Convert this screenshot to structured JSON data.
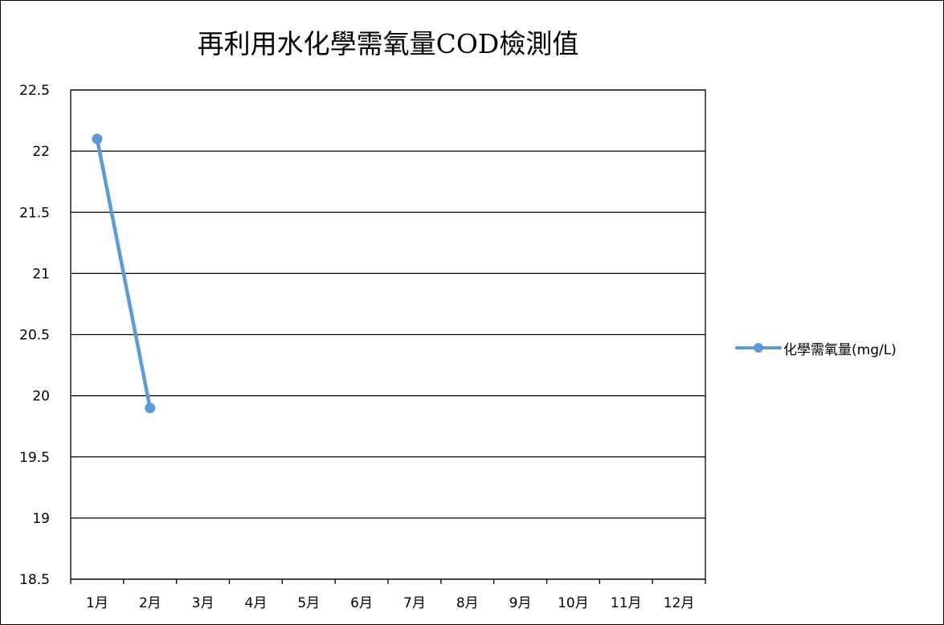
{
  "chart_data": {
    "type": "line",
    "title": "再利用水化學需氧量COD檢測值",
    "categories": [
      "1月",
      "2月",
      "3月",
      "4月",
      "5月",
      "6月",
      "7月",
      "8月",
      "9月",
      "10月",
      "11月",
      "12月"
    ],
    "series": [
      {
        "name": "化學需氧量(mg/L)",
        "values": [
          22.1,
          19.9,
          null,
          null,
          null,
          null,
          null,
          null,
          null,
          null,
          null,
          null
        ],
        "color": "#5B9BD5"
      }
    ],
    "ylim": [
      18.5,
      22.5
    ],
    "yticks": [
      "18.5",
      "19",
      "19.5",
      "20",
      "20.5",
      "21",
      "21.5",
      "22",
      "22.5"
    ],
    "grid": true,
    "legend_position": "right"
  }
}
